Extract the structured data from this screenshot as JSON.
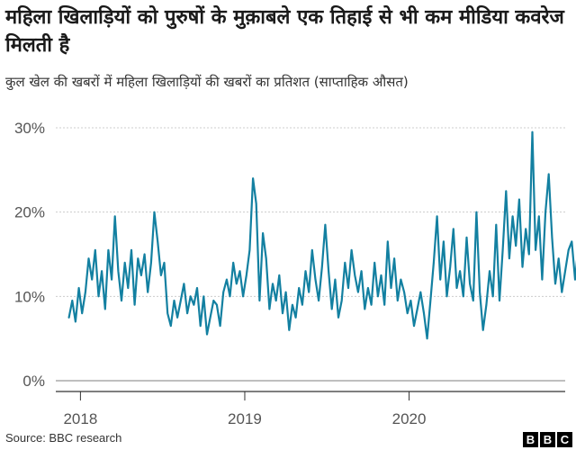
{
  "title": "महिला खिलाड़ियों को पुरुषों के मुक़ाबले एक तिहाई से भी कम मीडिया कवरेज मिलती है",
  "subtitle": "कुल खेल की खबरों में महिला खिलाड़ियों की खबरों का प्रतिशत (साप्ताहिक औसत)",
  "source": "Source: BBC research",
  "logo": [
    "B",
    "B",
    "C"
  ],
  "chart_data": {
    "type": "line",
    "title": "महिला खिलाड़ियों को पुरुषों के मुक़ाबले एक तिहाई से भी कम मीडिया कवरेज मिलती है",
    "subtitle": "कुल खेल की खबरों में महिला खिलाड़ियों की खबरों का प्रतिशत (साप्ताहिक औसत)",
    "xlabel": "",
    "ylabel": "",
    "x_ticks": [
      2018,
      2019,
      2020
    ],
    "y_ticks": [
      "0%",
      "10%",
      "20%",
      "30%"
    ],
    "ylim": [
      0,
      30
    ],
    "xlim": [
      2017.85,
      2020.95
    ],
    "grid": "horizontal dotted",
    "line_color": "#1380a1",
    "series": [
      {
        "values": [
          [
            2017.93,
            7.5
          ],
          [
            2017.95,
            9.5
          ],
          [
            2017.97,
            7.0
          ],
          [
            2017.99,
            11.0
          ],
          [
            2018.01,
            8.0
          ],
          [
            2018.03,
            10.5
          ],
          [
            2018.05,
            14.5
          ],
          [
            2018.07,
            12.0
          ],
          [
            2018.09,
            15.5
          ],
          [
            2018.11,
            10.0
          ],
          [
            2018.13,
            13.0
          ],
          [
            2018.15,
            8.5
          ],
          [
            2018.17,
            15.5
          ],
          [
            2018.19,
            12.0
          ],
          [
            2018.21,
            19.5
          ],
          [
            2018.23,
            13.0
          ],
          [
            2018.25,
            9.5
          ],
          [
            2018.27,
            14.0
          ],
          [
            2018.29,
            11.0
          ],
          [
            2018.31,
            15.5
          ],
          [
            2018.33,
            9.0
          ],
          [
            2018.35,
            14.5
          ],
          [
            2018.37,
            12.5
          ],
          [
            2018.39,
            15.0
          ],
          [
            2018.41,
            10.5
          ],
          [
            2018.43,
            14.0
          ],
          [
            2018.45,
            20.0
          ],
          [
            2018.47,
            16.5
          ],
          [
            2018.49,
            12.5
          ],
          [
            2018.51,
            14.0
          ],
          [
            2018.53,
            8.0
          ],
          [
            2018.55,
            6.5
          ],
          [
            2018.57,
            9.5
          ],
          [
            2018.59,
            7.5
          ],
          [
            2018.61,
            9.5
          ],
          [
            2018.63,
            11.5
          ],
          [
            2018.65,
            8.0
          ],
          [
            2018.67,
            10.0
          ],
          [
            2018.69,
            9.0
          ],
          [
            2018.71,
            11.0
          ],
          [
            2018.73,
            6.5
          ],
          [
            2018.75,
            10.0
          ],
          [
            2018.77,
            5.5
          ],
          [
            2018.79,
            7.5
          ],
          [
            2018.81,
            9.5
          ],
          [
            2018.83,
            9.0
          ],
          [
            2018.85,
            6.5
          ],
          [
            2018.87,
            10.5
          ],
          [
            2018.89,
            12.0
          ],
          [
            2018.91,
            10.0
          ],
          [
            2018.93,
            14.0
          ],
          [
            2018.95,
            11.5
          ],
          [
            2018.97,
            13.0
          ],
          [
            2018.99,
            10.0
          ],
          [
            2019.01,
            12.5
          ],
          [
            2019.03,
            15.5
          ],
          [
            2019.05,
            24.0
          ],
          [
            2019.07,
            21.0
          ],
          [
            2019.09,
            9.5
          ],
          [
            2019.11,
            17.5
          ],
          [
            2019.13,
            14.5
          ],
          [
            2019.15,
            8.5
          ],
          [
            2019.17,
            11.5
          ],
          [
            2019.19,
            9.5
          ],
          [
            2019.21,
            12.5
          ],
          [
            2019.23,
            8.0
          ],
          [
            2019.25,
            10.5
          ],
          [
            2019.27,
            6.0
          ],
          [
            2019.29,
            9.0
          ],
          [
            2019.31,
            7.5
          ],
          [
            2019.33,
            11.0
          ],
          [
            2019.35,
            9.0
          ],
          [
            2019.37,
            13.0
          ],
          [
            2019.39,
            10.5
          ],
          [
            2019.41,
            15.5
          ],
          [
            2019.43,
            12.0
          ],
          [
            2019.45,
            9.5
          ],
          [
            2019.47,
            13.5
          ],
          [
            2019.49,
            18.5
          ],
          [
            2019.51,
            13.0
          ],
          [
            2019.53,
            8.5
          ],
          [
            2019.55,
            12.0
          ],
          [
            2019.57,
            7.5
          ],
          [
            2019.59,
            9.5
          ],
          [
            2019.61,
            14.0
          ],
          [
            2019.63,
            11.0
          ],
          [
            2019.65,
            15.5
          ],
          [
            2019.67,
            12.5
          ],
          [
            2019.69,
            10.5
          ],
          [
            2019.71,
            13.0
          ],
          [
            2019.73,
            8.5
          ],
          [
            2019.75,
            11.0
          ],
          [
            2019.77,
            9.0
          ],
          [
            2019.79,
            14.0
          ],
          [
            2019.81,
            10.0
          ],
          [
            2019.83,
            12.5
          ],
          [
            2019.85,
            9.0
          ],
          [
            2019.87,
            16.5
          ],
          [
            2019.89,
            11.0
          ],
          [
            2019.91,
            14.5
          ],
          [
            2019.93,
            9.5
          ],
          [
            2019.95,
            12.0
          ],
          [
            2019.97,
            10.5
          ],
          [
            2019.99,
            8.0
          ],
          [
            2020.01,
            9.5
          ],
          [
            2020.03,
            6.5
          ],
          [
            2020.05,
            8.5
          ],
          [
            2020.07,
            10.5
          ],
          [
            2020.09,
            8.0
          ],
          [
            2020.11,
            5.0
          ],
          [
            2020.13,
            9.5
          ],
          [
            2020.15,
            14.0
          ],
          [
            2020.17,
            19.5
          ],
          [
            2020.19,
            12.0
          ],
          [
            2020.21,
            16.5
          ],
          [
            2020.23,
            10.0
          ],
          [
            2020.25,
            13.5
          ],
          [
            2020.27,
            18.0
          ],
          [
            2020.29,
            11.0
          ],
          [
            2020.31,
            13.0
          ],
          [
            2020.33,
            10.0
          ],
          [
            2020.35,
            17.0
          ],
          [
            2020.37,
            11.5
          ],
          [
            2020.39,
            9.5
          ],
          [
            2020.41,
            20.0
          ],
          [
            2020.43,
            10.5
          ],
          [
            2020.45,
            6.0
          ],
          [
            2020.47,
            9.0
          ],
          [
            2020.49,
            13.0
          ],
          [
            2020.51,
            10.0
          ],
          [
            2020.53,
            18.5
          ],
          [
            2020.55,
            9.5
          ],
          [
            2020.57,
            15.5
          ],
          [
            2020.59,
            22.5
          ],
          [
            2020.61,
            14.5
          ],
          [
            2020.63,
            19.5
          ],
          [
            2020.65,
            16.0
          ],
          [
            2020.67,
            21.5
          ],
          [
            2020.69,
            13.5
          ],
          [
            2020.71,
            18.0
          ],
          [
            2020.73,
            15.0
          ],
          [
            2020.75,
            29.5
          ],
          [
            2020.77,
            15.5
          ],
          [
            2020.79,
            19.5
          ],
          [
            2020.81,
            12.0
          ],
          [
            2020.83,
            20.0
          ],
          [
            2020.85,
            24.5
          ],
          [
            2020.87,
            17.0
          ],
          [
            2020.89,
            11.5
          ],
          [
            2020.91,
            14.5
          ],
          [
            2020.93,
            10.5
          ],
          [
            2020.95,
            13.0
          ],
          [
            2020.97,
            15.5
          ],
          [
            2020.99,
            16.5
          ],
          [
            2021.01,
            12.0
          ],
          [
            2021.03,
            16.0
          ],
          [
            2021.05,
            11.0
          ],
          [
            2021.07,
            12.0
          ]
        ]
      }
    ]
  }
}
